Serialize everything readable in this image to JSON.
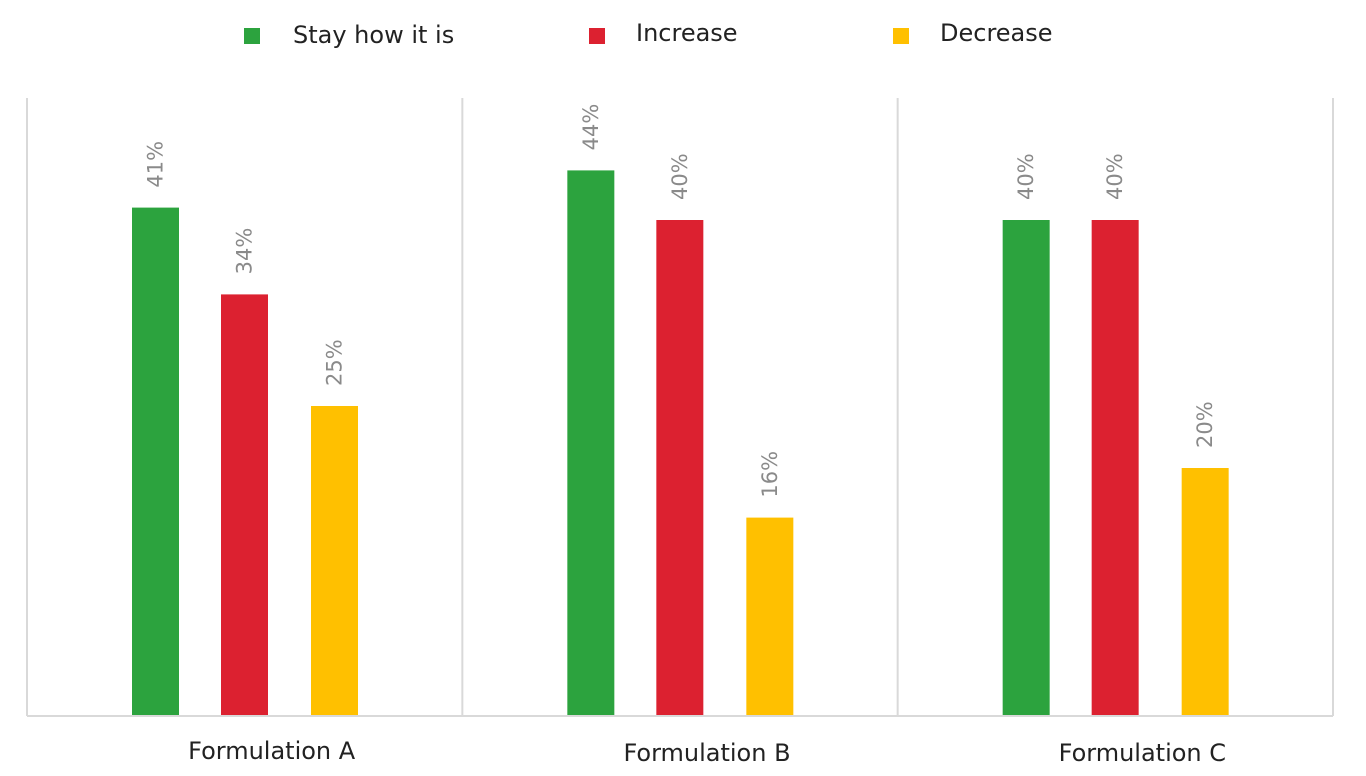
{
  "chart_data": {
    "type": "bar",
    "categories": [
      "Formulation A",
      "Formulation B",
      "Formulation C"
    ],
    "series": [
      {
        "name": "Stay how it is",
        "color": "#2ca33e",
        "values": [
          41,
          44,
          40
        ]
      },
      {
        "name": "Increase",
        "color": "#dc2130",
        "values": [
          34,
          40,
          40
        ]
      },
      {
        "name": "Decrease",
        "color": "#ffc000",
        "values": [
          25,
          16,
          20
        ]
      }
    ],
    "data_labels": [
      [
        "41%",
        "44%",
        "40%"
      ],
      [
        "34%",
        "40%",
        "40%"
      ],
      [
        "25%",
        "16%",
        "20%"
      ]
    ],
    "value_unit": "%",
    "ylim": [
      0,
      50
    ],
    "legend_position": "top",
    "grid": "vertical category separators",
    "title": "",
    "xlabel": "",
    "ylabel": ""
  }
}
